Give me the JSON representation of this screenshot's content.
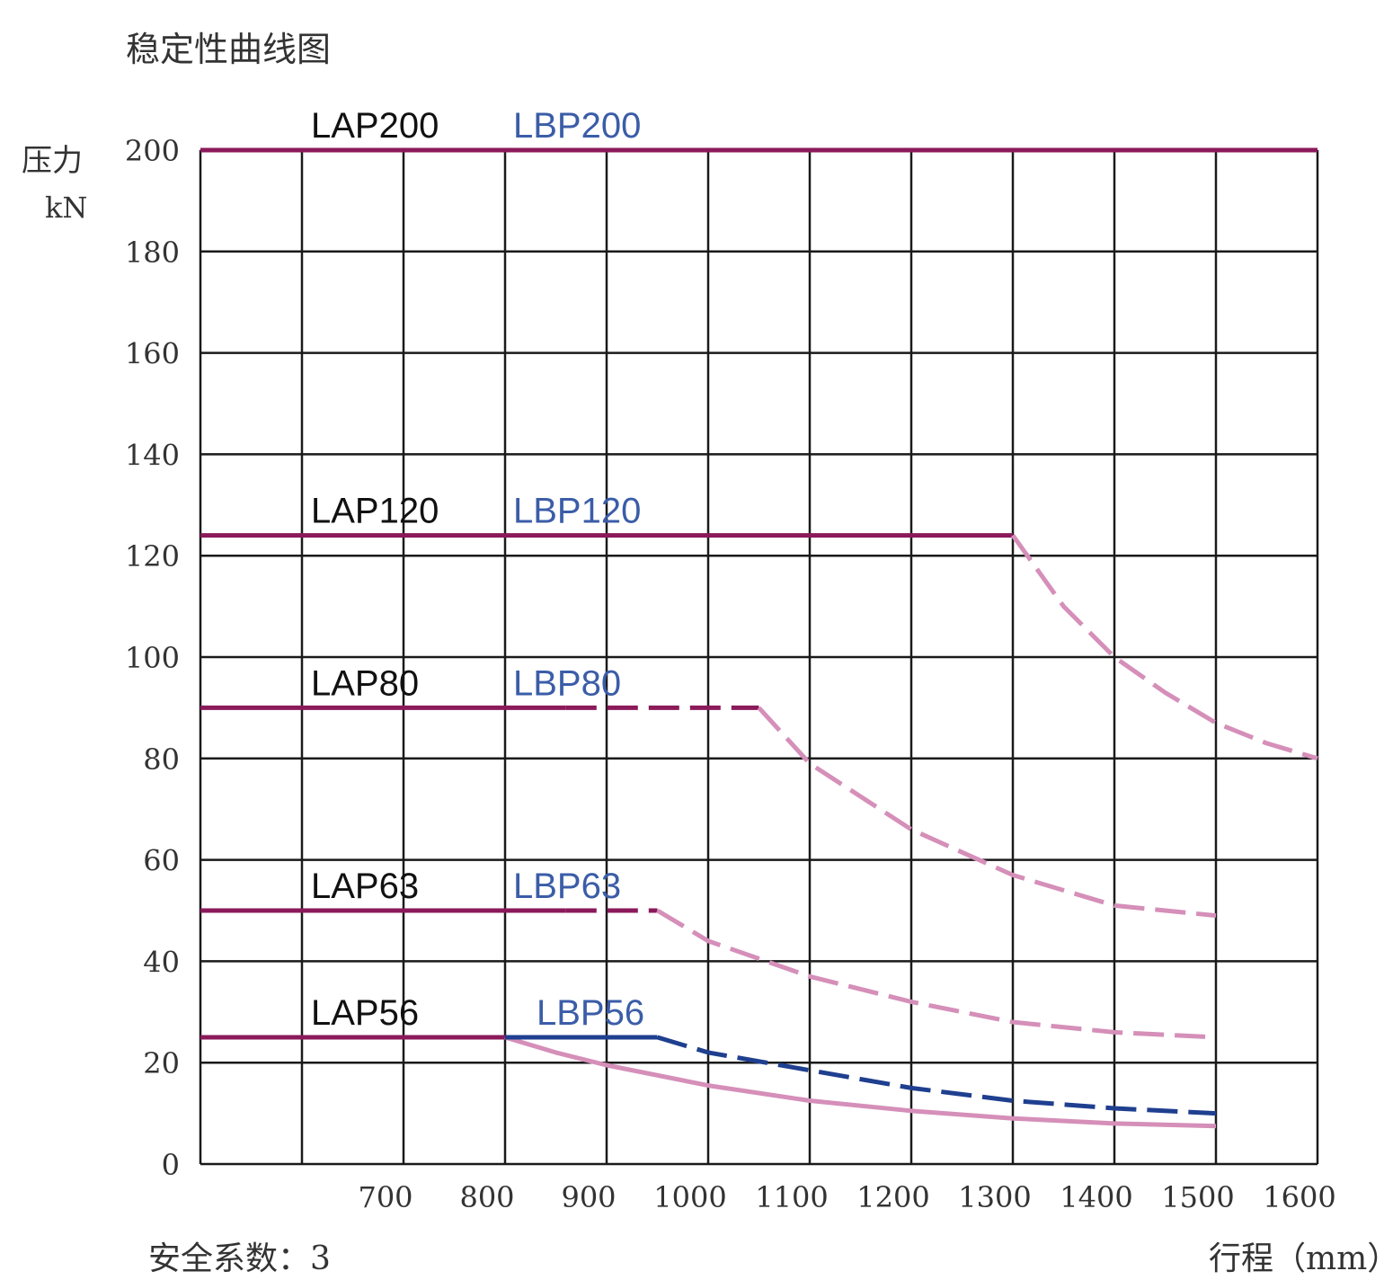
{
  "chart_data": {
    "type": "line",
    "title": "稳定性曲线图",
    "ylabel": "压力",
    "yunit": "kN",
    "xlabel": "行程（mm）",
    "note": "安全系数：3",
    "xlim": [
      500,
      1600
    ],
    "ylim": [
      0,
      200
    ],
    "x_ticks": [
      700,
      800,
      900,
      1000,
      1100,
      1200,
      1300,
      1400,
      1500,
      1600
    ],
    "y_ticks": [
      0,
      20,
      40,
      60,
      80,
      100,
      120,
      140,
      160,
      180,
      200
    ],
    "grid": true,
    "colors": {
      "grid": "#1a1a1a",
      "lap": "#8b1a5a",
      "lbp": "#d58fb9",
      "lbp56": "#1f3f8f",
      "lap_label": "#111111",
      "lbp_label": "#3b5da8"
    },
    "labels": [
      {
        "lap": "LAP200",
        "lbp": "LBP200",
        "y": 200
      },
      {
        "lap": "LAP120",
        "lbp": "LBP120",
        "y": 124
      },
      {
        "lap": "LAP80",
        "lbp": "LBP80",
        "y": 90
      },
      {
        "lap": "LAP63",
        "lbp": "LBP63",
        "y": 50
      },
      {
        "lap": "LAP56",
        "lbp": "LBP56",
        "y": 25
      }
    ],
    "series": [
      {
        "name": "LAP200",
        "style": "solid",
        "color": "#8b1a5a",
        "points": [
          [
            500,
            200
          ],
          [
            1600,
            200
          ]
        ]
      },
      {
        "name": "LAP120",
        "style": "solid",
        "color": "#8b1a5a",
        "points": [
          [
            500,
            124
          ],
          [
            1300,
            124
          ]
        ]
      },
      {
        "name": "LBP120",
        "style": "dashed",
        "color": "#d58fb9",
        "points": [
          [
            1300,
            124
          ],
          [
            1350,
            110
          ],
          [
            1400,
            100
          ],
          [
            1450,
            93
          ],
          [
            1500,
            87
          ],
          [
            1550,
            83
          ],
          [
            1600,
            80
          ]
        ]
      },
      {
        "name": "LAP80",
        "style": "solid",
        "color": "#8b1a5a",
        "points": [
          [
            500,
            90
          ],
          [
            860,
            90
          ]
        ]
      },
      {
        "name": "LBP80",
        "style": "dashed",
        "color": "#8b1a5a",
        "points": [
          [
            860,
            90
          ],
          [
            1050,
            90
          ]
        ]
      },
      {
        "name": "LBP80",
        "style": "dashed",
        "color": "#d58fb9",
        "points": [
          [
            1050,
            90
          ],
          [
            1100,
            79
          ],
          [
            1200,
            66
          ],
          [
            1300,
            57
          ],
          [
            1400,
            51
          ],
          [
            1500,
            49
          ]
        ]
      },
      {
        "name": "LAP63",
        "style": "solid",
        "color": "#8b1a5a",
        "points": [
          [
            500,
            50
          ],
          [
            860,
            50
          ]
        ]
      },
      {
        "name": "LBP63",
        "style": "dashed",
        "color": "#8b1a5a",
        "points": [
          [
            860,
            50
          ],
          [
            950,
            50
          ]
        ]
      },
      {
        "name": "LBP63",
        "style": "dashed",
        "color": "#d58fb9",
        "points": [
          [
            950,
            50
          ],
          [
            1000,
            44
          ],
          [
            1100,
            37
          ],
          [
            1200,
            32
          ],
          [
            1300,
            28
          ],
          [
            1400,
            26
          ],
          [
            1500,
            25
          ]
        ]
      },
      {
        "name": "LAP56",
        "style": "solid",
        "color": "#8b1a5a",
        "points": [
          [
            500,
            25
          ],
          [
            800,
            25
          ]
        ]
      },
      {
        "name": "LAP56",
        "style": "solid",
        "color": "#d58fb9",
        "points": [
          [
            800,
            25
          ],
          [
            850,
            22
          ],
          [
            900,
            19.5
          ],
          [
            1000,
            15.5
          ],
          [
            1100,
            12.5
          ],
          [
            1200,
            10.5
          ],
          [
            1300,
            9
          ],
          [
            1400,
            8
          ],
          [
            1500,
            7.5
          ]
        ]
      },
      {
        "name": "LBP56",
        "style": "solid",
        "color": "#1f3f8f",
        "points": [
          [
            800,
            25
          ],
          [
            950,
            25
          ]
        ]
      },
      {
        "name": "LBP56",
        "style": "dashed",
        "color": "#1f3f8f",
        "points": [
          [
            950,
            25
          ],
          [
            1000,
            22
          ],
          [
            1100,
            18.5
          ],
          [
            1200,
            15
          ],
          [
            1300,
            12.5
          ],
          [
            1400,
            11
          ],
          [
            1500,
            10
          ]
        ]
      }
    ]
  }
}
